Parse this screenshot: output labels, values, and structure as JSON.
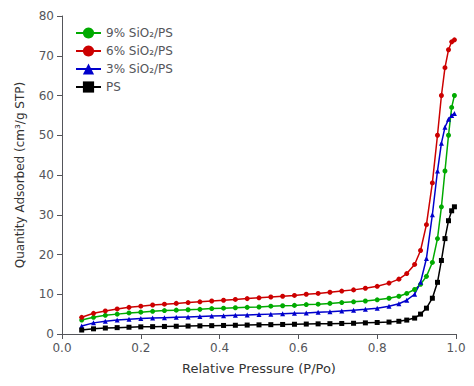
{
  "chart_data": {
    "type": "line",
    "xlabel": "Relative Pressure (P/Po)",
    "ylabel": "Quantity Adsorbed (cm³/g STP)",
    "xlim": [
      0.0,
      1.0
    ],
    "ylim": [
      0,
      80
    ],
    "xticks": [
      {
        "value": 0.0,
        "label": "0.0"
      },
      0.2,
      0.4,
      0.6,
      0.8,
      {
        "value": 1.0,
        "label": "1.0"
      }
    ],
    "yticks": [
      0,
      10,
      20,
      30,
      40,
      50,
      60,
      70,
      80
    ],
    "grid": false,
    "legend": "upper left",
    "x": [
      0.05,
      0.08,
      0.11,
      0.14,
      0.17,
      0.2,
      0.23,
      0.26,
      0.29,
      0.32,
      0.35,
      0.38,
      0.41,
      0.44,
      0.47,
      0.5,
      0.53,
      0.56,
      0.59,
      0.62,
      0.65,
      0.68,
      0.71,
      0.74,
      0.77,
      0.8,
      0.83,
      0.855,
      0.875,
      0.895,
      0.91,
      0.925,
      0.94,
      0.953,
      0.963,
      0.972,
      0.981,
      0.989,
      0.996
    ],
    "series": [
      {
        "name": "9% SiO₂/PS",
        "color": "#00aa00",
        "marker": "circle",
        "values": [
          3.5,
          4.2,
          4.7,
          5.0,
          5.3,
          5.5,
          5.7,
          5.9,
          6.0,
          6.1,
          6.2,
          6.4,
          6.5,
          6.6,
          6.7,
          6.8,
          7.0,
          7.1,
          7.2,
          7.4,
          7.5,
          7.7,
          7.9,
          8.1,
          8.3,
          8.6,
          9.0,
          9.5,
          10.2,
          11.2,
          12.5,
          14.5,
          18.0,
          24.0,
          32.0,
          41.0,
          50.0,
          57.0,
          60.0
        ]
      },
      {
        "name": "6% SiO₂/PS",
        "color": "#cc0000",
        "marker": "circle",
        "values": [
          4.2,
          5.2,
          5.8,
          6.3,
          6.7,
          7.0,
          7.3,
          7.5,
          7.7,
          7.9,
          8.1,
          8.3,
          8.5,
          8.7,
          8.9,
          9.1,
          9.3,
          9.5,
          9.7,
          10.0,
          10.2,
          10.5,
          10.8,
          11.1,
          11.5,
          12.0,
          12.8,
          13.8,
          15.2,
          17.5,
          21.0,
          27.5,
          38.0,
          50.0,
          60.0,
          67.0,
          71.5,
          73.5,
          74.0
        ]
      },
      {
        "name": "3% SiO₂/PS",
        "color": "#0000cc",
        "marker": "triangle",
        "values": [
          2.0,
          2.8,
          3.2,
          3.5,
          3.7,
          3.9,
          4.0,
          4.1,
          4.2,
          4.3,
          4.4,
          4.5,
          4.6,
          4.7,
          4.8,
          4.9,
          5.0,
          5.1,
          5.2,
          5.3,
          5.5,
          5.6,
          5.8,
          6.0,
          6.2,
          6.5,
          7.0,
          7.6,
          8.5,
          10.0,
          13.0,
          19.0,
          30.0,
          41.0,
          48.0,
          52.0,
          54.0,
          55.0,
          55.5
        ]
      },
      {
        "name": "PS",
        "color": "#000000",
        "marker": "square",
        "values": [
          1.0,
          1.3,
          1.5,
          1.6,
          1.7,
          1.8,
          1.85,
          1.9,
          1.95,
          2.0,
          2.05,
          2.1,
          2.15,
          2.2,
          2.25,
          2.3,
          2.35,
          2.4,
          2.45,
          2.5,
          2.55,
          2.6,
          2.65,
          2.7,
          2.8,
          2.9,
          3.0,
          3.2,
          3.5,
          4.0,
          5.0,
          6.5,
          9.0,
          13.0,
          18.5,
          24.0,
          28.5,
          31.0,
          32.0
        ]
      }
    ]
  }
}
